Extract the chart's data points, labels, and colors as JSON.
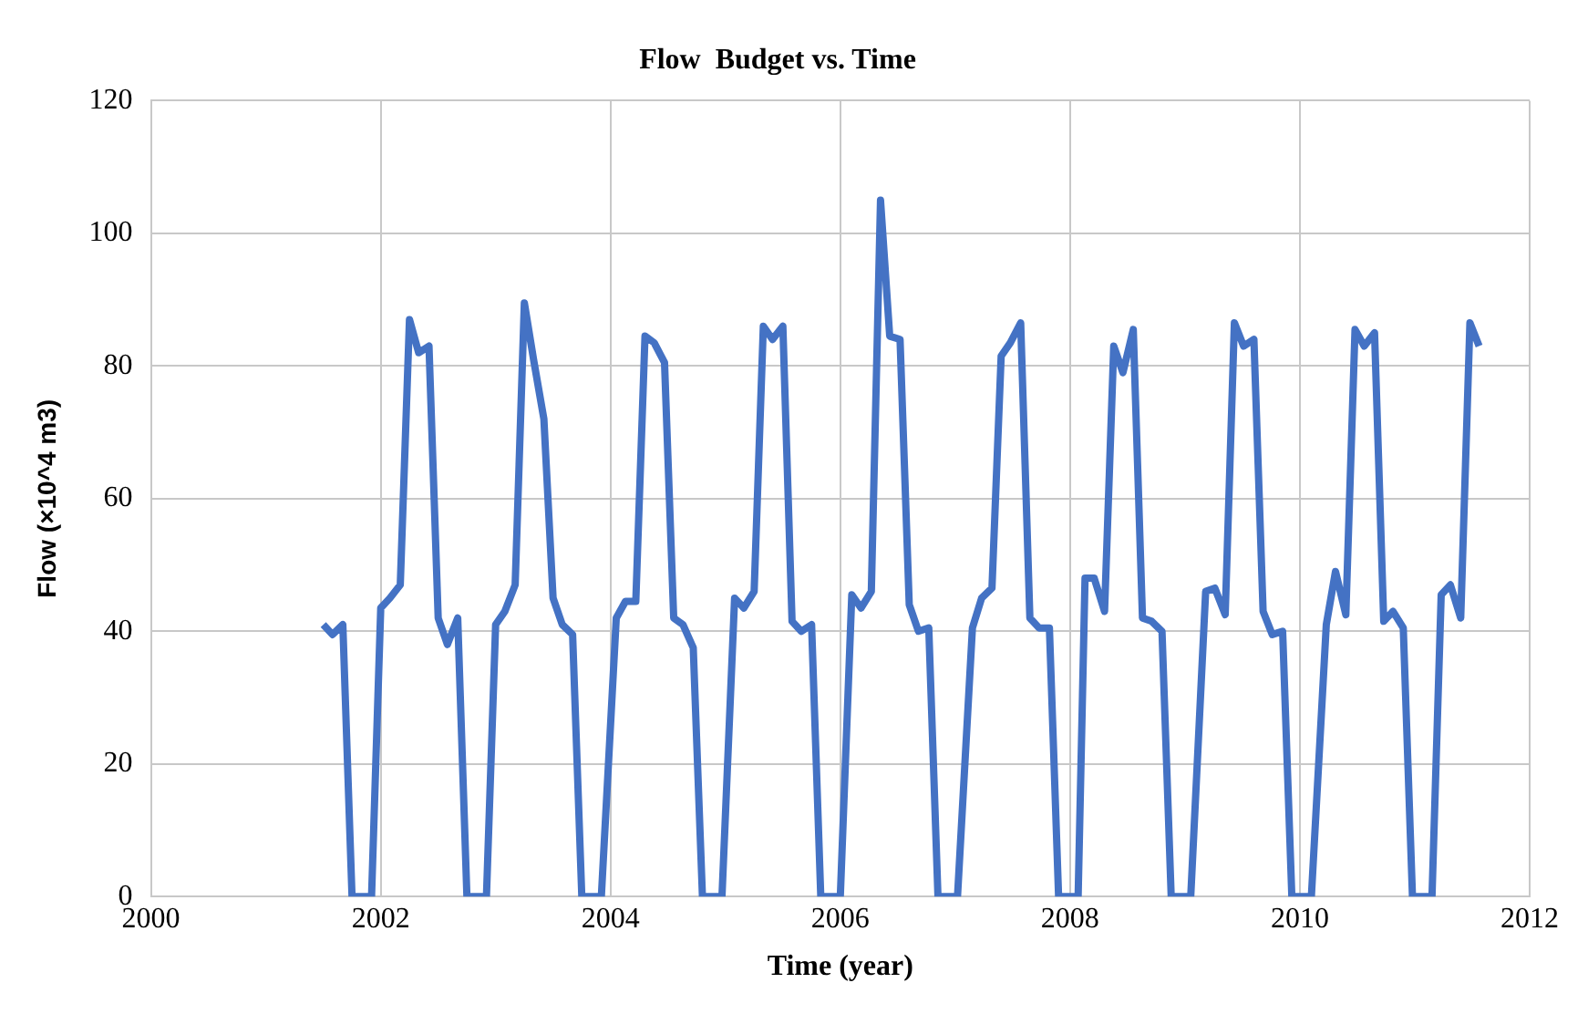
{
  "chart_data": {
    "type": "line",
    "title": "Flow  Budget vs. Time",
    "xlabel": "Time (year)",
    "ylabel": "Flow (×10^4 m3)",
    "x": [
      2001.5,
      2001.58,
      2001.67,
      2001.75,
      2001.83,
      2001.92,
      2002.0,
      2002.08,
      2002.17,
      2002.25,
      2002.33,
      2002.42,
      2002.5,
      2002.58,
      2002.67,
      2002.75,
      2002.83,
      2002.92,
      2003.0,
      2003.08,
      2003.17,
      2003.25,
      2003.33,
      2003.42,
      2003.5,
      2003.58,
      2003.67,
      2003.75,
      2003.83,
      2003.92,
      2004.05,
      2004.13,
      2004.22,
      2004.3,
      2004.38,
      2004.47,
      2004.55,
      2004.63,
      2004.72,
      2004.8,
      2004.88,
      2004.97,
      2005.08,
      2005.16,
      2005.25,
      2005.33,
      2005.41,
      2005.5,
      2005.58,
      2005.66,
      2005.75,
      2005.83,
      2005.91,
      2006.0,
      2006.1,
      2006.18,
      2006.27,
      2006.35,
      2006.43,
      2006.52,
      2006.6,
      2006.68,
      2006.77,
      2006.85,
      2006.93,
      2007.02,
      2007.15,
      2007.23,
      2007.32,
      2007.4,
      2007.48,
      2007.57,
      2007.65,
      2007.73,
      2007.82,
      2007.9,
      2007.98,
      2008.07,
      2008.13,
      2008.21,
      2008.3,
      2008.38,
      2008.46,
      2008.55,
      2008.63,
      2008.71,
      2008.8,
      2008.88,
      2008.96,
      2009.05,
      2009.18,
      2009.26,
      2009.35,
      2009.43,
      2009.51,
      2009.6,
      2009.68,
      2009.76,
      2009.85,
      2009.93,
      2010.01,
      2010.1,
      2010.23,
      2010.31,
      2010.4,
      2010.48,
      2010.56,
      2010.65,
      2010.73,
      2010.81,
      2010.9,
      2010.98,
      2011.06,
      2011.15,
      2011.23,
      2011.31,
      2011.4,
      2011.48,
      2011.56
    ],
    "series": [
      {
        "color": "#4472c4",
        "values": [
          41,
          39.5,
          41,
          0,
          0,
          0,
          43.5,
          45,
          47,
          87,
          82,
          83,
          42,
          38,
          42,
          0,
          0,
          0,
          41,
          43,
          47,
          89.5,
          81,
          72,
          45,
          41,
          39.5,
          0,
          0,
          0,
          42,
          44.5,
          44.5,
          84.5,
          83.5,
          80.5,
          42,
          41,
          37.5,
          0,
          0,
          0,
          45,
          43.5,
          46,
          86,
          84,
          86,
          41.5,
          40,
          41,
          0,
          0,
          0,
          45.5,
          43.5,
          46,
          105,
          84.5,
          84,
          44,
          40,
          40.5,
          0,
          0,
          0,
          40.5,
          45,
          46.5,
          81.5,
          83.5,
          86.5,
          42,
          40.5,
          40.5,
          0,
          0,
          0,
          48,
          48,
          43,
          83,
          79,
          85.5,
          42,
          41.5,
          40,
          0,
          0,
          0,
          46,
          46.5,
          42.5,
          86.5,
          83,
          84,
          43,
          39.5,
          40,
          0,
          0,
          0,
          41,
          49,
          42.5,
          85.5,
          83,
          85,
          41.5,
          43,
          40.5,
          0,
          0,
          0,
          45.5,
          47,
          42,
          86.5,
          83
        ]
      }
    ],
    "xlim": [
      2000,
      2012
    ],
    "xticks": [
      2000,
      2002,
      2004,
      2006,
      2008,
      2010,
      2012
    ],
    "ylim": [
      0,
      120
    ],
    "yticks": [
      0,
      20,
      40,
      60,
      80,
      100,
      120
    ],
    "grid": true,
    "marker": "none",
    "line_style": "solid"
  }
}
